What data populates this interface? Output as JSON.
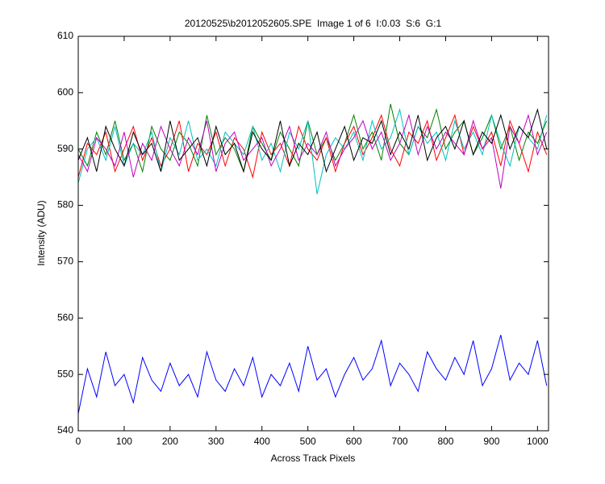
{
  "chart_data": {
    "type": "line",
    "title": "20120525\\b2012052605.SPE  Image 1 of 6  I:0.03  S:6  G:1",
    "x_label": "Across Track Pixels",
    "y_label": "Intensity (ADU)",
    "x": [
      0,
      20,
      40,
      60,
      80,
      100,
      120,
      140,
      160,
      180,
      200,
      220,
      240,
      260,
      280,
      300,
      320,
      340,
      360,
      380,
      400,
      420,
      440,
      460,
      480,
      500,
      520,
      540,
      560,
      580,
      600,
      620,
      640,
      660,
      680,
      700,
      720,
      740,
      760,
      780,
      800,
      820,
      840,
      860,
      880,
      900,
      920,
      940,
      960,
      980,
      1000,
      1020
    ],
    "series": [
      {
        "color": "#0000ff",
        "values": [
          543,
          551,
          546,
          554,
          548,
          550,
          545,
          553,
          549,
          547,
          552,
          548,
          550,
          546,
          554,
          549,
          547,
          551,
          548,
          553,
          546,
          550,
          548,
          552,
          547,
          555,
          549,
          551,
          546,
          550,
          553,
          549,
          551,
          556,
          548,
          552,
          550,
          547,
          554,
          551,
          549,
          553,
          550,
          556,
          548,
          551,
          557,
          549,
          552,
          550,
          556,
          548
        ]
      },
      {
        "color": "#008000",
        "values": [
          590,
          587,
          593,
          589,
          595,
          588,
          591,
          586,
          594,
          590,
          588,
          593,
          591,
          587,
          596,
          589,
          592,
          590,
          586,
          594,
          591,
          588,
          593,
          590,
          587,
          595,
          589,
          592,
          588,
          591,
          596,
          590,
          593,
          588,
          598,
          591,
          589,
          594,
          592,
          597,
          590,
          593,
          595,
          589,
          592,
          596,
          590,
          594,
          588,
          593,
          591,
          595
        ]
      },
      {
        "color": "#ff0000",
        "values": [
          585,
          591,
          589,
          593,
          586,
          590,
          594,
          588,
          592,
          587,
          590,
          595,
          586,
          591,
          589,
          593,
          587,
          592,
          590,
          585,
          593,
          589,
          591,
          587,
          594,
          590,
          588,
          592,
          586,
          591,
          594,
          589,
          592,
          596,
          590,
          587,
          593,
          591,
          595,
          588,
          592,
          596,
          589,
          594,
          590,
          593,
          587,
          595,
          591,
          586,
          593,
          589
        ]
      },
      {
        "color": "#00bfbf",
        "values": [
          584,
          590,
          592,
          588,
          594,
          587,
          591,
          589,
          593,
          586,
          592,
          589,
          595,
          588,
          590,
          587,
          593,
          591,
          589,
          594,
          588,
          591,
          586,
          593,
          590,
          595,
          582,
          589,
          592,
          590,
          593,
          588,
          595,
          590,
          592,
          597,
          589,
          594,
          591,
          593,
          588,
          595,
          590,
          593,
          589,
          596,
          591,
          587,
          594,
          592,
          590,
          596
        ]
      },
      {
        "color": "#bf00bf",
        "values": [
          589,
          586,
          592,
          590,
          587,
          593,
          585,
          591,
          588,
          594,
          590,
          587,
          592,
          589,
          595,
          586,
          591,
          593,
          588,
          590,
          592,
          587,
          590,
          594,
          588,
          591,
          589,
          593,
          587,
          590,
          592,
          595,
          590,
          593,
          588,
          591,
          596,
          589,
          594,
          590,
          593,
          591,
          589,
          595,
          590,
          592,
          583,
          594,
          591,
          596,
          589,
          593
        ]
      },
      {
        "color": "#000000",
        "values": [
          588,
          592,
          586,
          594,
          590,
          587,
          593,
          589,
          591,
          586,
          595,
          588,
          590,
          592,
          587,
          594,
          589,
          591,
          586,
          593,
          590,
          588,
          595,
          587,
          591,
          589,
          593,
          586,
          590,
          594,
          588,
          592,
          591,
          595,
          589,
          593,
          590,
          596,
          588,
          592,
          594,
          590,
          595,
          589,
          593,
          591,
          596,
          590,
          594,
          592,
          597,
          590
        ]
      }
    ],
    "xlim": [
      0,
      1024
    ],
    "ylim": [
      540,
      610
    ],
    "xticks": [
      0,
      100,
      200,
      300,
      400,
      500,
      600,
      700,
      800,
      900,
      1000
    ],
    "yticks": [
      540,
      550,
      560,
      570,
      580,
      590,
      600,
      610
    ],
    "grid": false
  }
}
